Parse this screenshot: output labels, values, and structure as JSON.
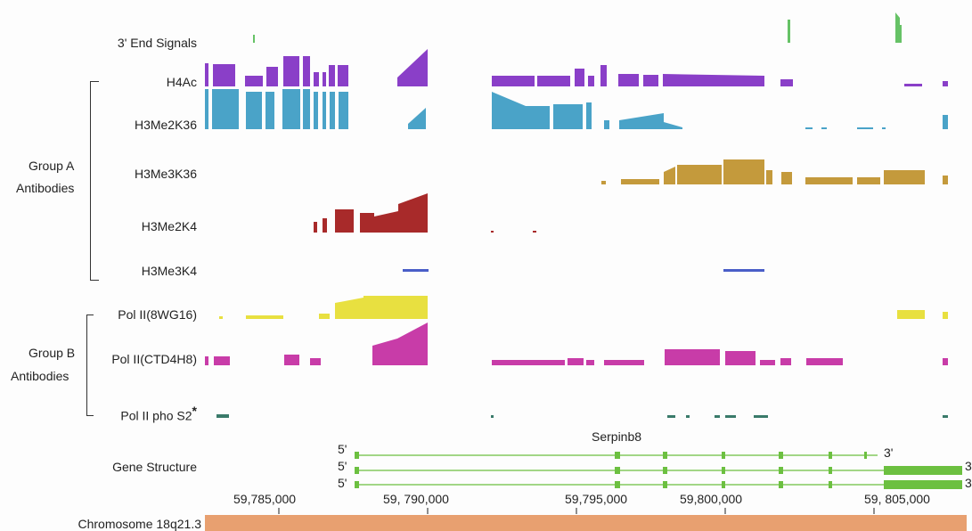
{
  "track_labels": {
    "end_signals": "3' End Signals",
    "h4ac": "H4Ac",
    "h3me2k36": "H3Me2K36",
    "h3me3k36": "H3Me3K36",
    "h3me2k4": "H3Me2K4",
    "h3me3k4": "H3Me3K4",
    "pol2_8wg16": "Pol II(8WG16)",
    "pol2_ctd4h8": "Pol II(CTD4H8)",
    "pol2_phos2": "Pol II pho S2",
    "pol2_phos2_mark": "*",
    "gene_structure": "Gene Structure",
    "chromosome": "Chromosome 18q21.3"
  },
  "groups": {
    "a_line1": "Group A",
    "a_line2": "Antibodies",
    "b_line1": "Group B",
    "b_line2": "Antibodies"
  },
  "gene": {
    "name": "Serpinb8",
    "five_prime": "5'",
    "three_prime": "3'"
  },
  "axis": {
    "ticks": [
      59785000,
      59790000,
      59795000,
      59800000,
      59805000
    ],
    "tick_labels": [
      "59,785,000",
      "59, 790,000",
      "59,795,000",
      "59,800,000",
      "59, 805,000"
    ]
  },
  "colors": {
    "end_signals": "#66c266",
    "h4ac": "#8a3fc8",
    "h3me2k36": "#4aa3c8",
    "h3me3k36": "#c49a3c",
    "h3me2k4": "#a82a2a",
    "h3me3k4": "#4a5ec8",
    "pol2_8wg16": "#e8e040",
    "pol2_ctd4h8": "#c83ca8",
    "pol2_phos2": "#3a7a6a",
    "gene": "#6cc040",
    "chromosome": "#e8a070"
  }
}
